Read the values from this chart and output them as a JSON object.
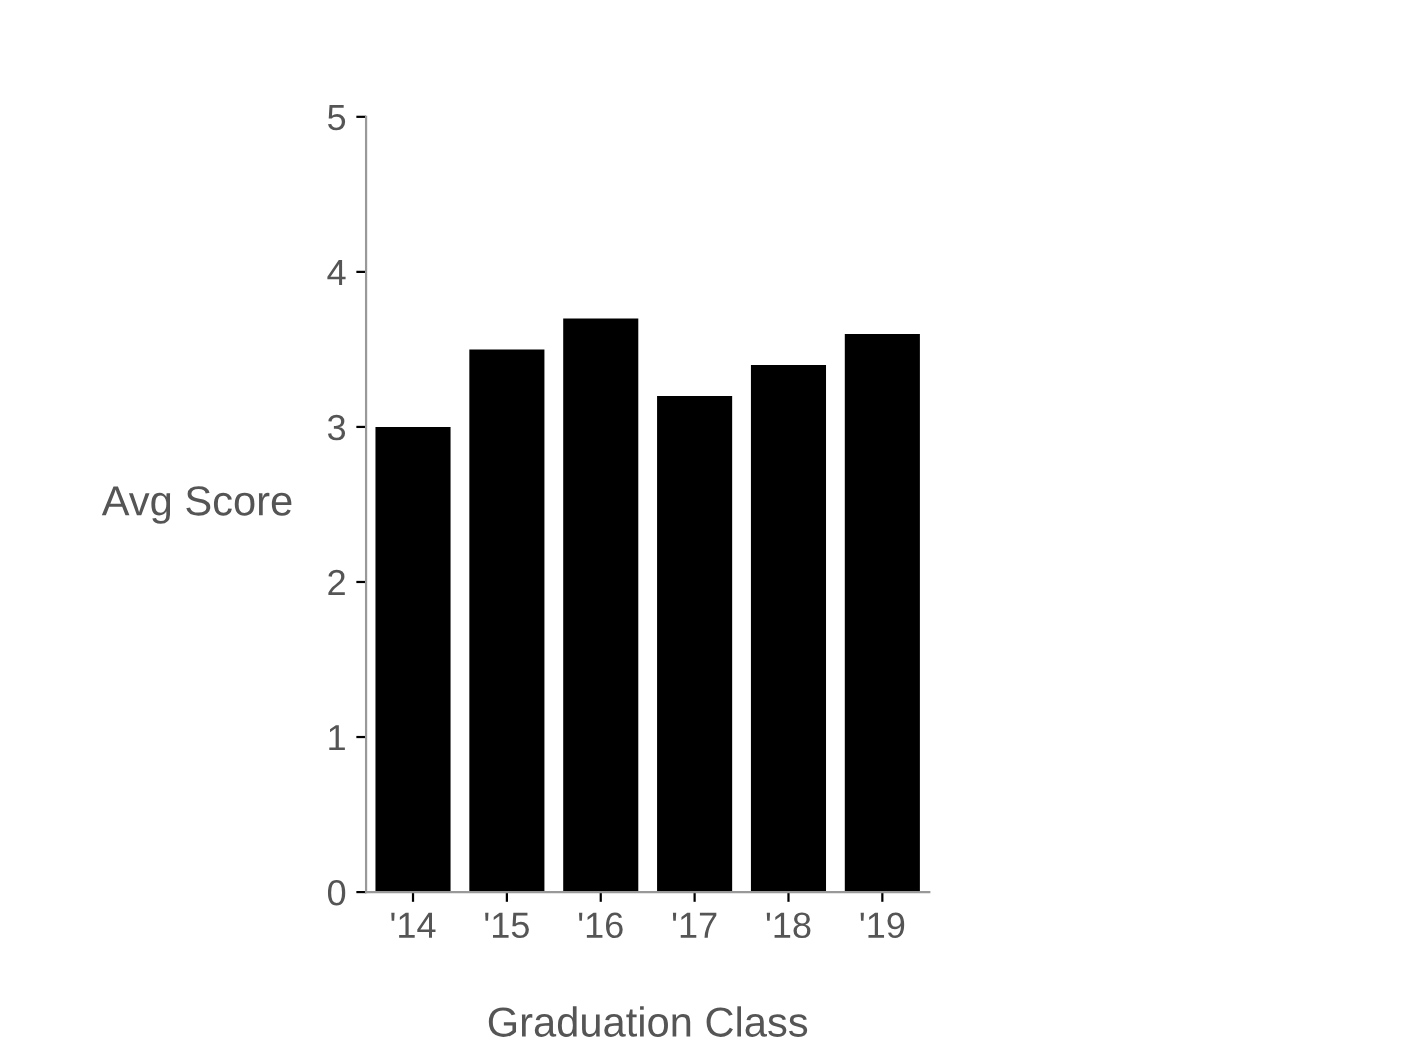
{
  "chart_data": {
    "type": "bar",
    "xlabel": "Graduation Class",
    "ylabel": "Avg Score",
    "categories": [
      "'14",
      "'15",
      "'16",
      "'17",
      "'18",
      "'19"
    ],
    "series": [
      {
        "color": "#000000",
        "values": [
          3.0,
          3.5,
          3.7,
          3.2,
          3.4,
          3.6
        ]
      }
    ],
    "ylim": [
      0,
      5
    ],
    "yticks": [
      0,
      1,
      2,
      3,
      4,
      5
    ],
    "grid": false
  }
}
